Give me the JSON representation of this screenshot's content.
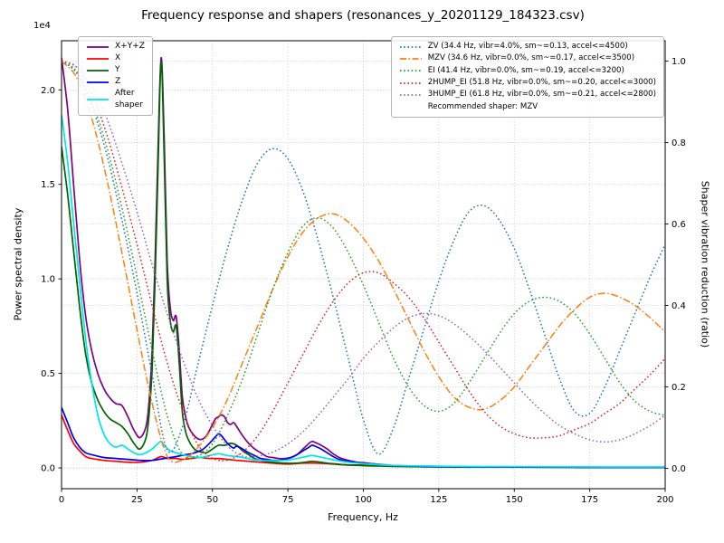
{
  "chart_data": {
    "type": "line",
    "title": "Frequency response and shapers (resonances_y_20201129_184323.csv)",
    "xlabel": "Frequency, Hz",
    "ylabel": "Power spectral density",
    "ylabel2": "Shaper vibration reduction (ratio)",
    "offset_text": "1e4",
    "psd_scale_note": "left axis values are in units of 1e4",
    "xlim": [
      0,
      200
    ],
    "ylim_left": [
      -0.11,
      2.26
    ],
    "ylim_right": [
      -0.05,
      1.05
    ],
    "xticks": [
      0,
      25,
      50,
      75,
      100,
      125,
      150,
      175,
      200
    ],
    "yticks_left": [
      0.0,
      0.5,
      1.0,
      1.5,
      2.0
    ],
    "yticks_right": [
      0.0,
      0.2,
      0.4,
      0.6,
      0.8,
      1.0
    ],
    "grid": true,
    "legend_note": "Recommended shaper: MZV",
    "psd_series": [
      {
        "name": "X+Y+Z",
        "color": "#800080",
        "x": [
          0,
          2,
          4,
          6,
          8,
          10,
          12,
          14,
          16,
          18,
          20,
          22,
          24,
          26,
          28,
          29,
          30,
          31,
          32,
          33,
          34,
          35,
          36,
          37,
          38,
          39,
          40,
          41,
          42,
          44,
          46,
          48,
          50,
          51,
          52,
          53,
          54,
          55,
          56,
          57,
          58,
          60,
          62,
          64,
          66,
          68,
          70,
          72,
          74,
          76,
          78,
          80,
          82,
          83,
          84,
          86,
          88,
          90,
          92,
          95,
          98,
          100,
          103,
          106,
          110,
          115,
          120,
          130,
          140,
          150,
          160,
          170,
          180,
          190,
          200
        ],
        "y": [
          2.17,
          1.9,
          1.5,
          1.1,
          0.8,
          0.62,
          0.5,
          0.42,
          0.37,
          0.34,
          0.33,
          0.27,
          0.2,
          0.16,
          0.22,
          0.35,
          0.62,
          1.1,
          1.7,
          2.17,
          1.75,
          1.1,
          0.85,
          0.78,
          0.8,
          0.62,
          0.38,
          0.28,
          0.22,
          0.17,
          0.15,
          0.17,
          0.23,
          0.26,
          0.27,
          0.28,
          0.27,
          0.24,
          0.23,
          0.24,
          0.22,
          0.17,
          0.13,
          0.1,
          0.08,
          0.06,
          0.055,
          0.05,
          0.05,
          0.055,
          0.07,
          0.1,
          0.13,
          0.14,
          0.135,
          0.12,
          0.1,
          0.075,
          0.055,
          0.04,
          0.03,
          0.028,
          0.022,
          0.018,
          0.013,
          0.01,
          0.009,
          0.007,
          0.006,
          0.005,
          0.004,
          0.004,
          0.003,
          0.003,
          0.003
        ]
      },
      {
        "name": "X",
        "color": "#ff0000",
        "x": [
          0,
          2,
          4,
          6,
          8,
          10,
          14,
          18,
          22,
          26,
          30,
          33,
          35,
          38,
          40,
          43,
          46,
          49,
          52,
          55,
          58,
          62,
          66,
          70,
          75,
          80,
          85,
          90,
          95,
          100,
          110,
          120,
          140,
          160,
          180,
          200
        ],
        "y": [
          0.28,
          0.2,
          0.13,
          0.09,
          0.06,
          0.05,
          0.04,
          0.035,
          0.03,
          0.03,
          0.04,
          0.06,
          0.05,
          0.05,
          0.045,
          0.05,
          0.055,
          0.05,
          0.05,
          0.045,
          0.04,
          0.035,
          0.03,
          0.025,
          0.02,
          0.025,
          0.025,
          0.02,
          0.015,
          0.015,
          0.01,
          0.007,
          0.005,
          0.004,
          0.003,
          0.003
        ]
      },
      {
        "name": "Y",
        "color": "#006400",
        "x": [
          0,
          2,
          4,
          6,
          8,
          10,
          12,
          14,
          16,
          18,
          20,
          22,
          24,
          26,
          28,
          29,
          30,
          31,
          32,
          33,
          34,
          35,
          36,
          37,
          38,
          39,
          40,
          41,
          42,
          44,
          46,
          48,
          50,
          52,
          54,
          56,
          58,
          60,
          62,
          64,
          66,
          68,
          70,
          73,
          76,
          79,
          82,
          83,
          85,
          88,
          90,
          93,
          96,
          100,
          105,
          110,
          120,
          130,
          140,
          150,
          160,
          170,
          180,
          190,
          200
        ],
        "y": [
          1.7,
          1.45,
          1.15,
          0.85,
          0.6,
          0.45,
          0.36,
          0.3,
          0.26,
          0.24,
          0.22,
          0.18,
          0.13,
          0.1,
          0.16,
          0.28,
          0.52,
          1.0,
          1.6,
          2.15,
          1.65,
          1.0,
          0.78,
          0.72,
          0.75,
          0.55,
          0.3,
          0.2,
          0.15,
          0.1,
          0.085,
          0.08,
          0.1,
          0.12,
          0.12,
          0.13,
          0.12,
          0.09,
          0.07,
          0.05,
          0.04,
          0.033,
          0.03,
          0.026,
          0.024,
          0.027,
          0.033,
          0.035,
          0.032,
          0.025,
          0.022,
          0.018,
          0.015,
          0.012,
          0.01,
          0.008,
          0.006,
          0.005,
          0.004,
          0.004,
          0.003,
          0.003,
          0.003,
          0.003,
          0.003
        ]
      },
      {
        "name": "Z",
        "color": "#0000ee",
        "x": [
          0,
          2,
          4,
          6,
          8,
          10,
          14,
          18,
          22,
          26,
          30,
          34,
          38,
          41,
          43,
          45,
          47,
          49,
          51,
          52,
          53,
          55,
          57,
          58,
          60,
          62,
          64,
          66,
          68,
          70,
          72,
          74,
          76,
          78,
          80,
          82,
          83,
          84,
          86,
          88,
          90,
          92,
          95,
          98,
          100,
          103,
          106,
          110,
          115,
          120,
          130,
          140,
          160,
          180,
          200
        ],
        "y": [
          0.32,
          0.24,
          0.16,
          0.11,
          0.08,
          0.07,
          0.055,
          0.05,
          0.045,
          0.04,
          0.04,
          0.05,
          0.06,
          0.07,
          0.075,
          0.085,
          0.1,
          0.13,
          0.165,
          0.18,
          0.17,
          0.13,
          0.105,
          0.115,
          0.1,
          0.08,
          0.065,
          0.05,
          0.045,
          0.04,
          0.04,
          0.045,
          0.055,
          0.07,
          0.09,
          0.11,
          0.12,
          0.115,
          0.1,
          0.08,
          0.06,
          0.045,
          0.035,
          0.028,
          0.025,
          0.02,
          0.016,
          0.012,
          0.01,
          0.008,
          0.006,
          0.005,
          0.004,
          0.003,
          0.003
        ]
      },
      {
        "name": "After\nshaper",
        "color": "#00e5ee",
        "x": [
          0,
          2,
          4,
          6,
          8,
          10,
          12,
          14,
          16,
          18,
          20,
          22,
          24,
          26,
          28,
          30,
          32,
          33,
          34,
          36,
          38,
          40,
          43,
          46,
          49,
          52,
          55,
          58,
          60,
          63,
          66,
          70,
          74,
          78,
          81,
          83,
          85,
          88,
          91,
          95,
          100,
          105,
          110,
          120,
          130,
          140,
          160,
          180,
          200
        ],
        "y": [
          1.87,
          1.62,
          1.3,
          0.98,
          0.68,
          0.45,
          0.28,
          0.18,
          0.13,
          0.11,
          0.12,
          0.1,
          0.08,
          0.07,
          0.08,
          0.1,
          0.13,
          0.14,
          0.12,
          0.09,
          0.08,
          0.07,
          0.06,
          0.055,
          0.065,
          0.075,
          0.065,
          0.06,
          0.055,
          0.045,
          0.04,
          0.038,
          0.04,
          0.05,
          0.06,
          0.065,
          0.06,
          0.05,
          0.04,
          0.03,
          0.022,
          0.017,
          0.013,
          0.01,
          0.008,
          0.007,
          0.006,
          0.005,
          0.005
        ]
      }
    ],
    "shaper_x": [
      0,
      5,
      10,
      15,
      20,
      25,
      30,
      35,
      40,
      45,
      50,
      55,
      60,
      65,
      70,
      75,
      80,
      85,
      90,
      95,
      100,
      105,
      110,
      115,
      120,
      125,
      130,
      135,
      140,
      145,
      150,
      155,
      160,
      165,
      170,
      175,
      180,
      185,
      190,
      195,
      200
    ],
    "shaper_series": [
      {
        "label": "ZV (34.4 Hz, vibr=4.0%, sm~=0.13, accel<=4500)",
        "color": "#1f77b4",
        "style": "dotted",
        "y": [
          1.0,
          0.97,
          0.89,
          0.77,
          0.61,
          0.43,
          0.23,
          0.045,
          0.1,
          0.25,
          0.4,
          0.54,
          0.66,
          0.75,
          0.785,
          0.76,
          0.68,
          0.56,
          0.42,
          0.27,
          0.12,
          0.035,
          0.1,
          0.22,
          0.34,
          0.46,
          0.56,
          0.63,
          0.645,
          0.61,
          0.54,
          0.44,
          0.33,
          0.22,
          0.14,
          0.135,
          0.2,
          0.29,
          0.38,
          0.47,
          0.55
        ]
      },
      {
        "label": "MZV (34.6 Hz, vibr=0.0%, sm~=0.17, accel<=3500)",
        "color": "#ff7f0e",
        "style": "dashdot",
        "y": [
          1.0,
          0.96,
          0.86,
          0.71,
          0.53,
          0.34,
          0.16,
          0.03,
          0.02,
          0.05,
          0.1,
          0.17,
          0.26,
          0.35,
          0.44,
          0.52,
          0.58,
          0.615,
          0.625,
          0.605,
          0.565,
          0.51,
          0.44,
          0.365,
          0.29,
          0.225,
          0.175,
          0.15,
          0.145,
          0.165,
          0.2,
          0.25,
          0.3,
          0.35,
          0.39,
          0.42,
          0.43,
          0.42,
          0.4,
          0.37,
          0.335
        ]
      },
      {
        "label": "EI (41.4 Hz, vibr=0.0%, sm~=0.19, accel<=3200)",
        "color": "#2ca02c",
        "style": "dotted",
        "y": [
          1.0,
          0.975,
          0.9,
          0.79,
          0.64,
          0.47,
          0.29,
          0.13,
          0.035,
          0.03,
          0.06,
          0.13,
          0.22,
          0.33,
          0.44,
          0.53,
          0.595,
          0.615,
          0.59,
          0.53,
          0.45,
          0.36,
          0.27,
          0.2,
          0.155,
          0.14,
          0.16,
          0.21,
          0.27,
          0.33,
          0.38,
          0.41,
          0.42,
          0.41,
          0.38,
          0.33,
          0.27,
          0.21,
          0.165,
          0.14,
          0.13
        ]
      },
      {
        "label": "2HUMP_EI (51.8 Hz, vibr=0.0%, sm~=0.20, accel<=3000)",
        "color": "#d62728",
        "style": "dotted",
        "y": [
          1.0,
          0.985,
          0.92,
          0.82,
          0.69,
          0.55,
          0.4,
          0.26,
          0.145,
          0.06,
          0.025,
          0.02,
          0.04,
          0.08,
          0.14,
          0.21,
          0.28,
          0.35,
          0.41,
          0.455,
          0.48,
          0.48,
          0.455,
          0.42,
          0.37,
          0.31,
          0.25,
          0.19,
          0.14,
          0.105,
          0.085,
          0.075,
          0.075,
          0.08,
          0.095,
          0.11,
          0.135,
          0.16,
          0.195,
          0.23,
          0.27
        ]
      },
      {
        "label": "3HUMP_EI (61.8 Hz, vibr=0.0%, sm~=0.21, accel<=2800)",
        "color": "#9467bd",
        "style": "dotted",
        "y": [
          1.0,
          0.985,
          0.94,
          0.86,
          0.75,
          0.63,
          0.5,
          0.38,
          0.27,
          0.175,
          0.105,
          0.055,
          0.03,
          0.03,
          0.04,
          0.06,
          0.09,
          0.13,
          0.175,
          0.22,
          0.27,
          0.31,
          0.345,
          0.37,
          0.38,
          0.375,
          0.355,
          0.325,
          0.29,
          0.25,
          0.21,
          0.17,
          0.135,
          0.105,
          0.085,
          0.07,
          0.065,
          0.07,
          0.085,
          0.105,
          0.13
        ]
      }
    ]
  }
}
